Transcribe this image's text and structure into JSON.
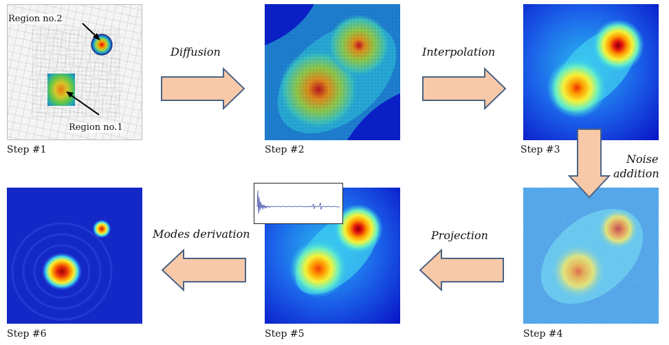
{
  "steps": [
    {
      "label": "Step #1"
    },
    {
      "label": "Step #2"
    },
    {
      "label": "Step #3"
    },
    {
      "label": "Step #4"
    },
    {
      "label": "Step #5"
    },
    {
      "label": "Step #6"
    }
  ],
  "operations": {
    "diffusion": "Diffusion",
    "interpolation": "Interpolation",
    "noise_line1": "Noise",
    "noise_line2": "addition",
    "projection": "Projection",
    "modes": "Modes derivation"
  },
  "regions": {
    "region1": "Region no.1",
    "region2": "Region no.2"
  },
  "colors": {
    "arrow_fill": "#f8c9a8",
    "arrow_stroke": "#4a6285",
    "field_low": "#0a1fd6",
    "field_high": "#c80000",
    "mesh_line": "#777777"
  }
}
